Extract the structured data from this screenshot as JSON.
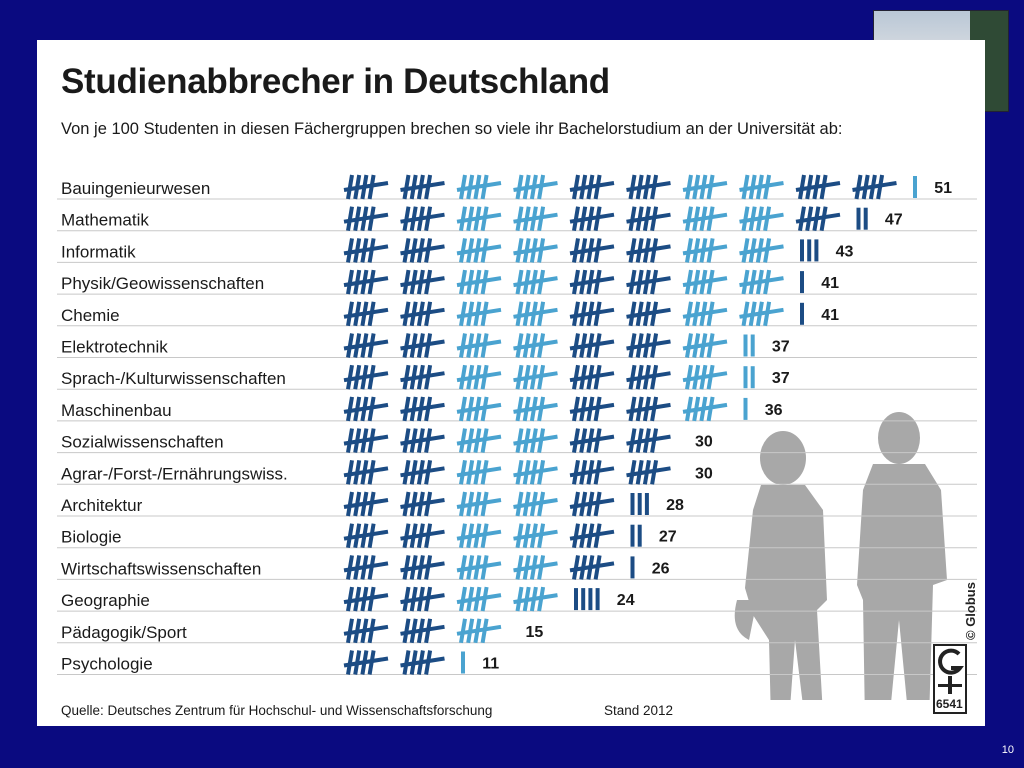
{
  "slide": {
    "number": "10"
  },
  "infographic": {
    "title": "Studienabbrecher in Deutschland",
    "subtitle": "Von je 100 Studenten in diesen Fächergruppen brechen so viele ihr Bachelorstudium an der Universität ab:",
    "source": "Quelle: Deutsches Zentrum für Hochschul- und Wissenschaftsforschung",
    "stand": "Stand 2012",
    "credit": "© Globus",
    "logo_number": "6541"
  },
  "colors": {
    "dark_blue": "#1c4c84",
    "light_blue": "#4aa3d0",
    "silhouette": "#a8a8a8",
    "background": "#0a0a80"
  },
  "chart_data": {
    "type": "bar",
    "title": "Studienabbrecher in Deutschland",
    "encoding": "tally marks",
    "categories": [
      "Bauingenieurwesen",
      "Mathematik",
      "Informatik",
      "Physik/Geowissenschaften",
      "Chemie",
      "Elektrotechnik",
      "Sprach-/Kulturwissenschaften",
      "Maschinenbau",
      "Sozialwissenschaften",
      "Agrar-/Forst-/Ernährungswiss.",
      "Architektur",
      "Biologie",
      "Wirtschaftswissenschaften",
      "Geographie",
      "Pädagogik/Sport",
      "Psychologie"
    ],
    "values": [
      51,
      47,
      43,
      41,
      41,
      37,
      37,
      36,
      30,
      30,
      28,
      27,
      26,
      24,
      15,
      11
    ]
  }
}
